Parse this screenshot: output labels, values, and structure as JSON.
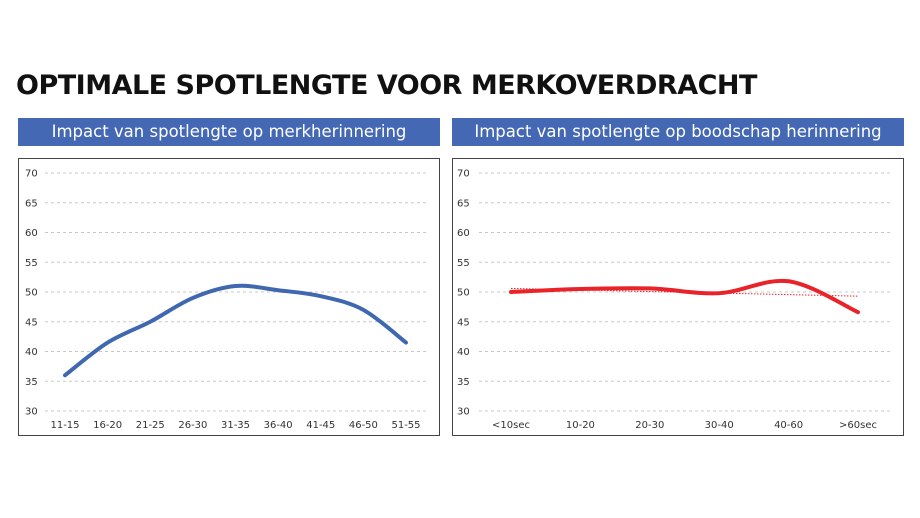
{
  "page": {
    "title": "OPTIMALE SPOTLENGTE VOOR MERKOVERDRACHT",
    "accent_color": "#4468b4"
  },
  "chart_data": [
    {
      "type": "line",
      "title": "Impact van spotlengte op merkherinnering",
      "categories": [
        "11-15",
        "16-20",
        "21-25",
        "26-30",
        "31-35",
        "36-40",
        "41-45",
        "46-50",
        "51-55"
      ],
      "series": [
        {
          "values": [
            36,
            41.5,
            45,
            49,
            51,
            50.3,
            49.3,
            47,
            41.5
          ],
          "color": "#4068b0"
        }
      ],
      "ylim": [
        30,
        70
      ],
      "yticks": [
        70,
        65,
        60,
        55,
        50,
        45,
        40,
        35,
        30
      ],
      "grid": true,
      "grid_style": "dashed"
    },
    {
      "type": "line",
      "title": "Impact van spotlengte op boodschap herinnering",
      "categories": [
        "<10sec",
        "10-20",
        "20-30",
        "30-40",
        "40-60",
        ">60sec"
      ],
      "series": [
        {
          "values": [
            50,
            50.5,
            50.6,
            49.8,
            51.8,
            46.6
          ],
          "color": "#e8232a"
        }
      ],
      "trendline": {
        "values": [
          50.6,
          49.3
        ],
        "color": "#e8232a",
        "style": "dotted"
      },
      "ylim": [
        30,
        70
      ],
      "yticks": [
        70,
        65,
        60,
        55,
        50,
        45,
        40,
        35,
        30
      ],
      "grid": true,
      "grid_style": "dashed"
    }
  ]
}
